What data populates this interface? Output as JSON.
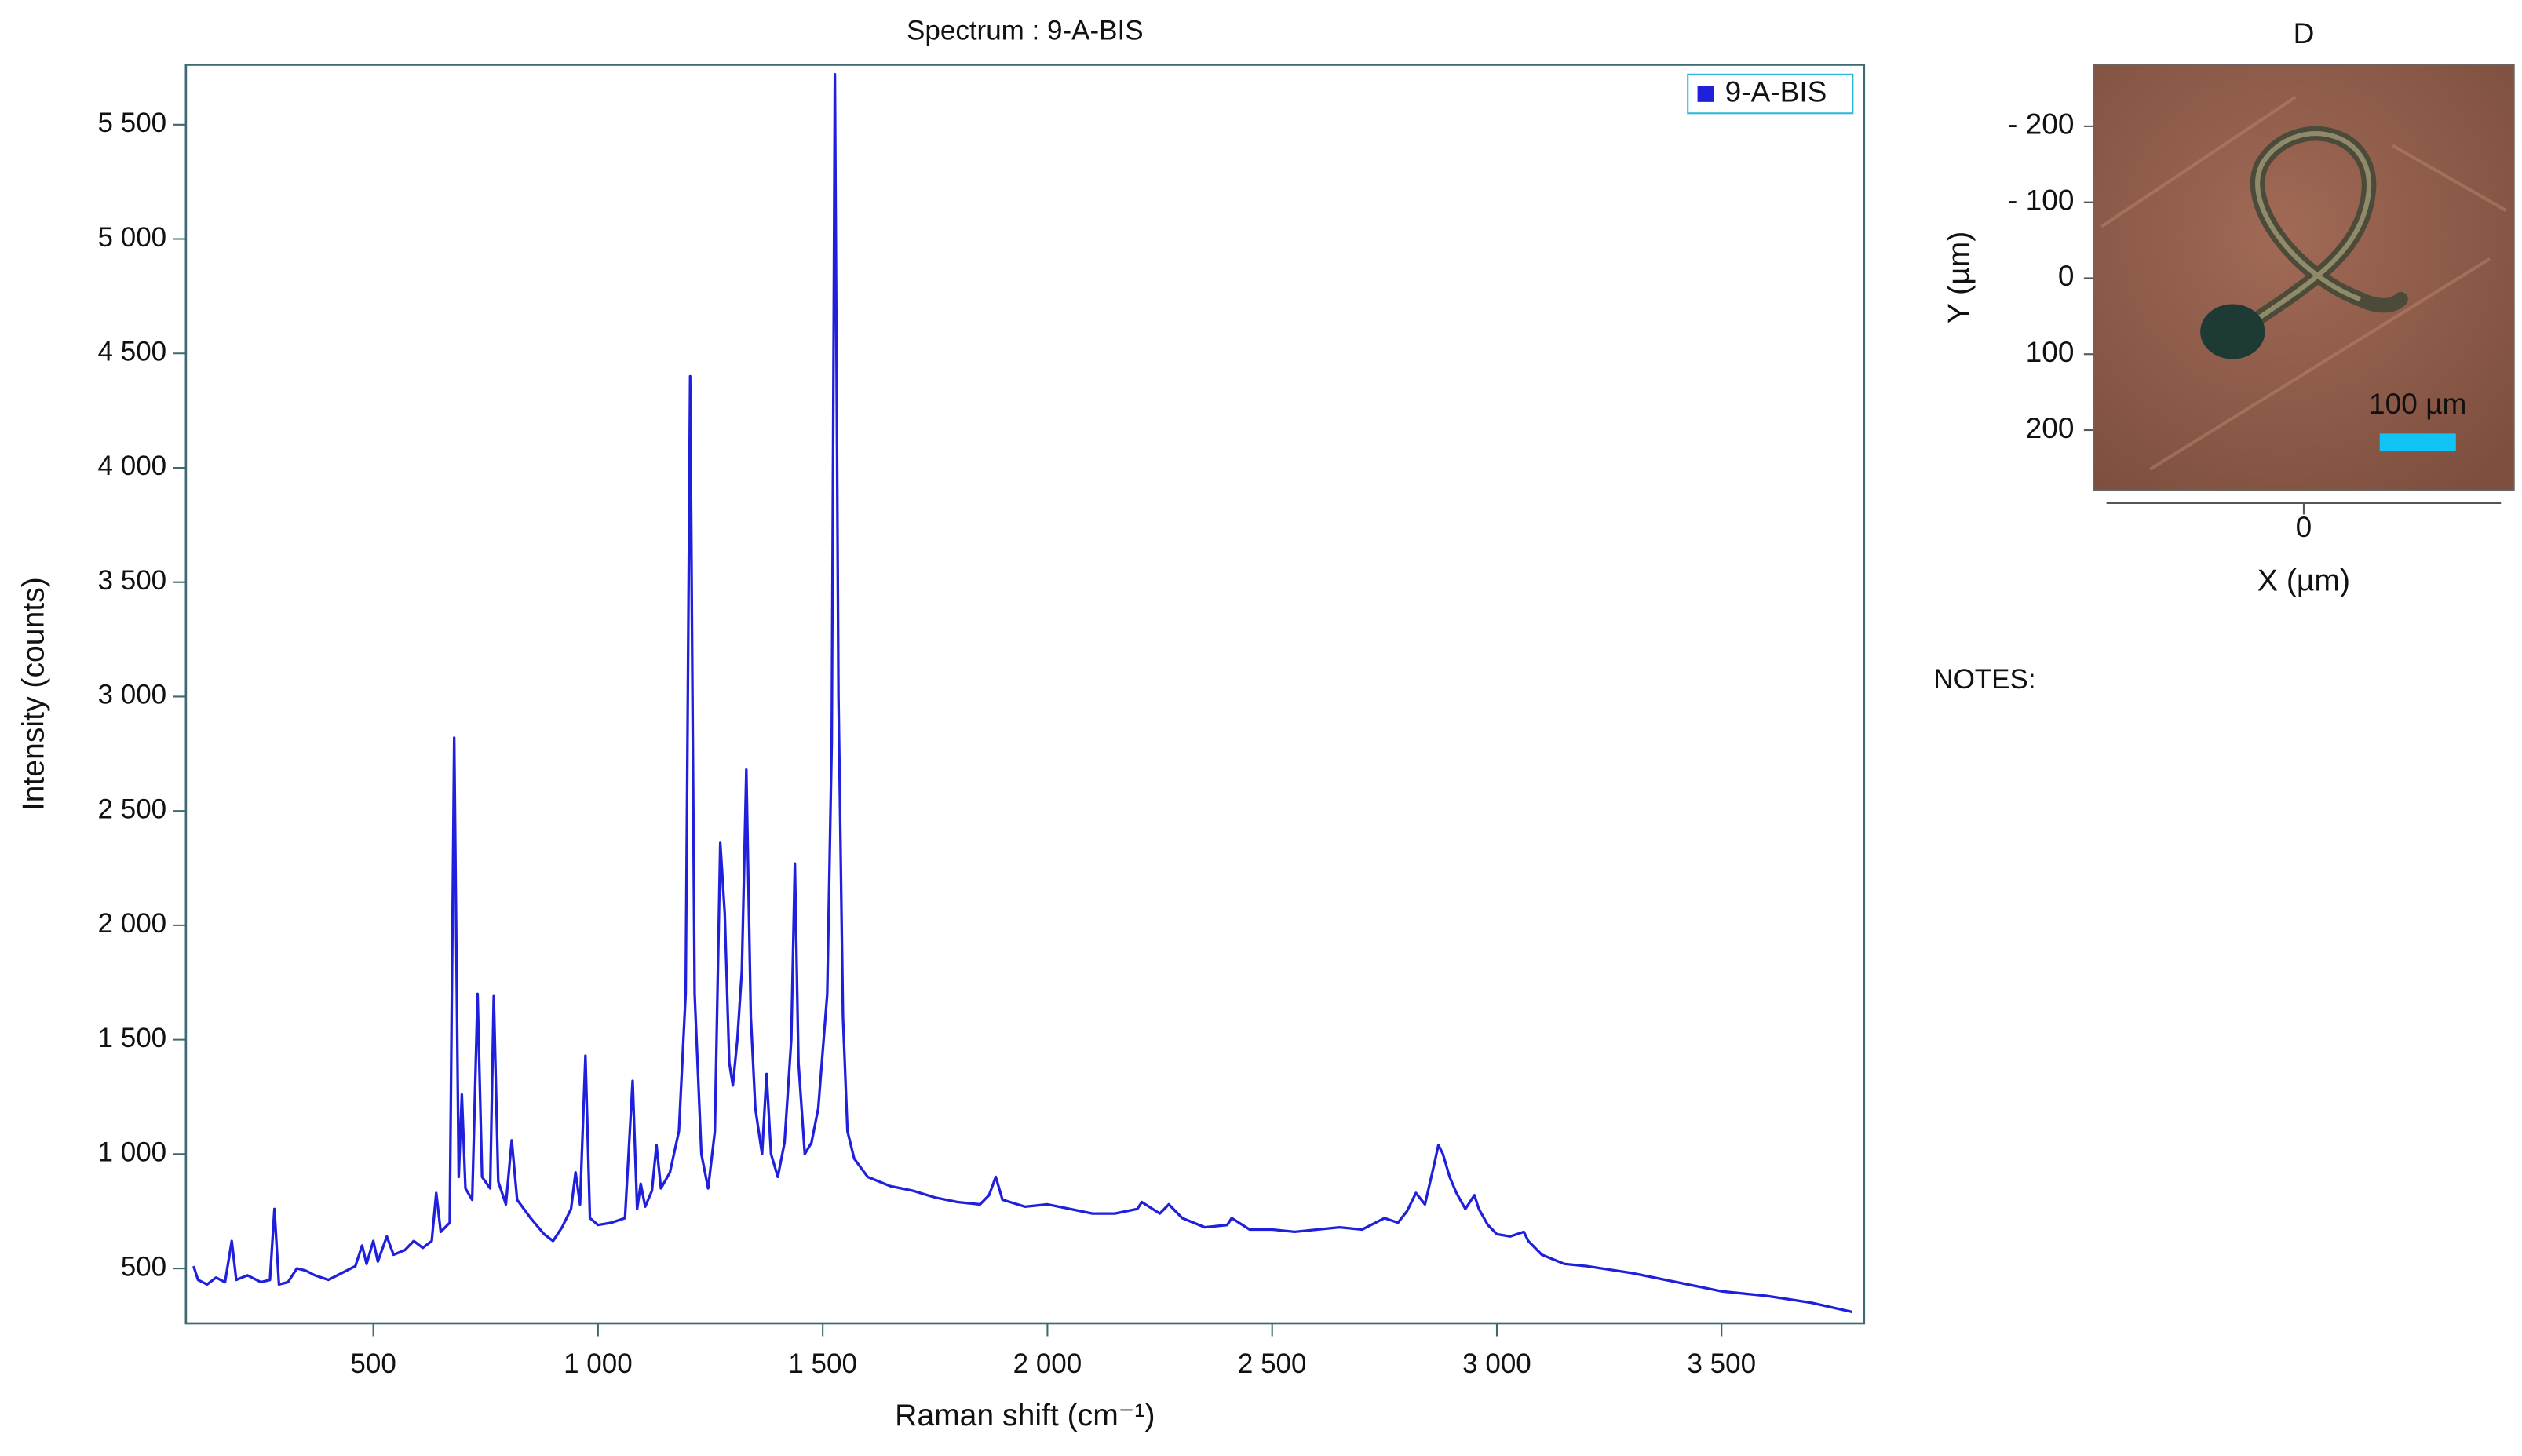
{
  "chart_data": [
    {
      "type": "line",
      "title": "Spectrum : 9-A-BIS",
      "xlabel": "Raman shift (cm⁻¹)",
      "ylabel": "Intensity (counts)",
      "xlim": [
        83,
        3817
      ],
      "ylim": [
        260,
        5762
      ],
      "xticks": [
        500,
        {
          "value": 1000,
          "label": "1 000"
        },
        {
          "value": 1500,
          "label": "1 500"
        },
        {
          "value": 2000,
          "label": "2 000"
        },
        {
          "value": 2500,
          "label": "2 500"
        },
        {
          "value": 3000,
          "label": "3 000"
        },
        {
          "value": 3500,
          "label": "3 500"
        }
      ],
      "yticks": [
        500,
        {
          "value": 1000,
          "label": "1 000"
        },
        {
          "value": 1500,
          "label": "1 500"
        },
        {
          "value": 2000,
          "label": "2 000"
        },
        {
          "value": 2500,
          "label": "2 500"
        },
        {
          "value": 3000,
          "label": "3 000"
        },
        {
          "value": 3500,
          "label": "3 500"
        },
        {
          "value": 4000,
          "label": "4 000"
        },
        {
          "value": 4500,
          "label": "4 500"
        },
        {
          "value": 5000,
          "label": "5 000"
        },
        {
          "value": 5500,
          "label": "5 500"
        }
      ],
      "legend": "upper right",
      "x": [
        100,
        110,
        130,
        150,
        170,
        185,
        195,
        220,
        250,
        270,
        280,
        290,
        310,
        330,
        350,
        370,
        400,
        430,
        460,
        475,
        485,
        500,
        510,
        530,
        545,
        570,
        590,
        610,
        630,
        640,
        650,
        670,
        680,
        690,
        697,
        705,
        720,
        732,
        742,
        760,
        768,
        778,
        795,
        808,
        820,
        850,
        880,
        900,
        920,
        940,
        950,
        960,
        972,
        982,
        1000,
        1030,
        1060,
        1077,
        1087,
        1095,
        1105,
        1120,
        1130,
        1140,
        1160,
        1180,
        1195,
        1205,
        1215,
        1230,
        1245,
        1260,
        1272,
        1282,
        1292,
        1300,
        1310,
        1320,
        1330,
        1340,
        1350,
        1365,
        1375,
        1385,
        1400,
        1415,
        1430,
        1438,
        1446,
        1460,
        1475,
        1490,
        1500,
        1510,
        1520,
        1527,
        1535,
        1545,
        1555,
        1570,
        1600,
        1650,
        1700,
        1750,
        1800,
        1850,
        1870,
        1885,
        1900,
        1950,
        2000,
        2050,
        2100,
        2150,
        2200,
        2210,
        2250,
        2270,
        2300,
        2350,
        2400,
        2410,
        2450,
        2500,
        2550,
        2600,
        2650,
        2700,
        2750,
        2780,
        2800,
        2820,
        2840,
        2860,
        2870,
        2880,
        2895,
        2910,
        2930,
        2950,
        2960,
        2980,
        3000,
        3030,
        3060,
        3070,
        3100,
        3150,
        3200,
        3300,
        3400,
        3500,
        3600,
        3700,
        3790
      ],
      "series": [
        {
          "name": "9-A-BIS",
          "color": "#1f1fdc",
          "values": [
            510,
            450,
            430,
            460,
            440,
            620,
            450,
            470,
            440,
            450,
            760,
            430,
            440,
            500,
            490,
            470,
            450,
            480,
            510,
            600,
            520,
            620,
            530,
            640,
            560,
            580,
            620,
            590,
            620,
            830,
            660,
            700,
            2820,
            900,
            1260,
            850,
            800,
            1700,
            900,
            850,
            1690,
            880,
            780,
            1060,
            800,
            720,
            650,
            620,
            680,
            760,
            920,
            780,
            1430,
            720,
            690,
            700,
            720,
            1320,
            760,
            870,
            770,
            840,
            1040,
            850,
            920,
            1100,
            1700,
            4400,
            1700,
            1000,
            850,
            1100,
            2360,
            2050,
            1400,
            1300,
            1500,
            1800,
            2680,
            1600,
            1200,
            1000,
            1350,
            1000,
            900,
            1050,
            1500,
            2270,
            1400,
            1000,
            1050,
            1200,
            1450,
            1700,
            2800,
            5720,
            3000,
            1600,
            1100,
            980,
            900,
            860,
            840,
            810,
            790,
            780,
            820,
            900,
            800,
            770,
            780,
            760,
            740,
            740,
            760,
            790,
            740,
            780,
            720,
            680,
            690,
            720,
            670,
            670,
            660,
            670,
            680,
            670,
            720,
            700,
            750,
            830,
            780,
            950,
            1040,
            1000,
            900,
            830,
            760,
            820,
            760,
            690,
            650,
            640,
            660,
            620,
            560,
            520,
            510,
            480,
            440,
            400,
            380,
            350,
            310
          ]
        }
      ]
    },
    {
      "type": "image",
      "title": "D",
      "xlabel": "X (µm)",
      "ylabel": "Y (µm)",
      "xlim": [
        -276,
        276
      ],
      "ylim": [
        -281,
        279
      ],
      "y_inverted": true,
      "xticks": [
        0
      ],
      "yticks": [
        {
          "value": -200,
          "label": "- 200"
        },
        {
          "value": -100,
          "label": "- 100"
        },
        0,
        100,
        200
      ],
      "scale_bar": {
        "label": "100 µm",
        "length": 100,
        "color": "#12c4f5"
      }
    }
  ],
  "notes_label": "NOTES:"
}
